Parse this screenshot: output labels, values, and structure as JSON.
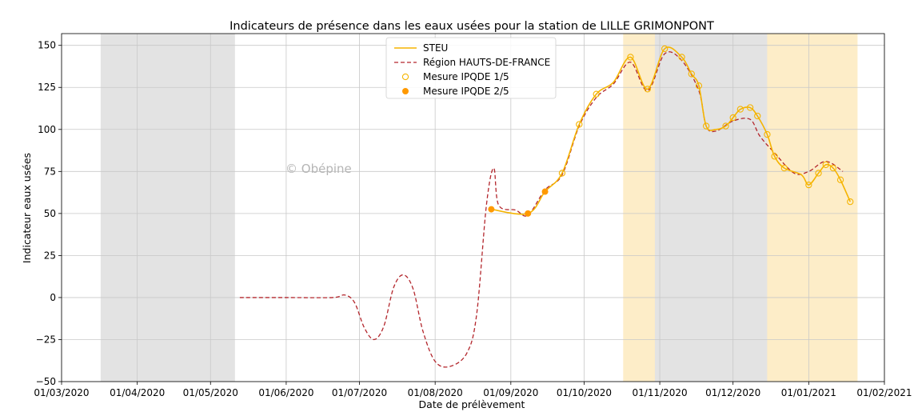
{
  "chart_data": {
    "type": "line",
    "title": "Indicateurs de présence dans les eaux usées pour la station de LILLE GRIMONPONT",
    "xlabel": "Date de prélèvement",
    "ylabel": "Indicateur eaux usées",
    "watermark": "© Obépine",
    "xlim": [
      "2020-03-01",
      "2021-02-01"
    ],
    "ylim": [
      -50,
      157
    ],
    "grid": true,
    "legend_position": "top-center",
    "x_ticks": [
      {
        "date": "2020-03-01",
        "label": "01/03/2020"
      },
      {
        "date": "2020-04-01",
        "label": "01/04/2020"
      },
      {
        "date": "2020-05-01",
        "label": "01/05/2020"
      },
      {
        "date": "2020-06-01",
        "label": "01/06/2020"
      },
      {
        "date": "2020-07-01",
        "label": "01/07/2020"
      },
      {
        "date": "2020-08-01",
        "label": "01/08/2020"
      },
      {
        "date": "2020-09-01",
        "label": "01/09/2020"
      },
      {
        "date": "2020-10-01",
        "label": "01/10/2020"
      },
      {
        "date": "2020-11-01",
        "label": "01/11/2020"
      },
      {
        "date": "2020-12-01",
        "label": "01/12/2020"
      },
      {
        "date": "2021-01-01",
        "label": "01/01/2021"
      },
      {
        "date": "2021-02-01",
        "label": "01/02/2021"
      }
    ],
    "y_ticks": [
      {
        "value": -50,
        "label": "−50"
      },
      {
        "value": -25,
        "label": "−25"
      },
      {
        "value": 0,
        "label": "0"
      },
      {
        "value": 25,
        "label": "25"
      },
      {
        "value": 50,
        "label": "50"
      },
      {
        "value": 75,
        "label": "75"
      },
      {
        "value": 100,
        "label": "100"
      },
      {
        "value": 125,
        "label": "125"
      },
      {
        "value": 150,
        "label": "150"
      }
    ],
    "shaded_periods": [
      {
        "start": "2020-03-17",
        "end": "2020-05-11",
        "color": "#e3e3e3"
      },
      {
        "start": "2020-10-17",
        "end": "2020-12-15",
        "color": "#fdedc8"
      },
      {
        "start": "2020-10-30",
        "end": "2020-12-15",
        "color": "#e3e3e3"
      },
      {
        "start": "2020-12-15",
        "end": "2021-01-21",
        "color": "#fdedc8"
      }
    ],
    "series": [
      {
        "name": "STEU",
        "style": "solid",
        "color": "#f5b400",
        "points": [
          [
            "2020-08-24",
            52.5
          ],
          [
            "2020-09-08",
            50
          ],
          [
            "2020-09-15",
            63
          ],
          [
            "2020-09-22",
            74
          ],
          [
            "2020-09-29",
            103
          ],
          [
            "2020-10-06",
            121
          ],
          [
            "2020-10-13",
            128
          ],
          [
            "2020-10-20",
            143
          ],
          [
            "2020-10-27",
            124
          ],
          [
            "2020-11-03",
            148
          ],
          [
            "2020-11-10",
            143
          ],
          [
            "2020-11-14",
            133
          ],
          [
            "2020-11-17",
            126
          ],
          [
            "2020-11-20",
            102
          ],
          [
            "2020-11-24",
            100
          ],
          [
            "2020-11-28",
            102
          ],
          [
            "2020-12-01",
            107
          ],
          [
            "2020-12-04",
            112
          ],
          [
            "2020-12-08",
            113
          ],
          [
            "2020-12-11",
            108
          ],
          [
            "2020-12-15",
            97
          ],
          [
            "2020-12-18",
            84
          ],
          [
            "2020-12-22",
            77
          ],
          [
            "2020-12-29",
            73
          ],
          [
            "2021-01-01",
            67
          ],
          [
            "2021-01-05",
            74
          ],
          [
            "2021-01-08",
            79
          ],
          [
            "2021-01-11",
            77
          ],
          [
            "2021-01-14",
            70
          ],
          [
            "2021-01-18",
            57
          ]
        ]
      },
      {
        "name": "Région HAUTS-DE-FRANCE",
        "style": "dashed",
        "color": "#b3262c",
        "points": [
          [
            "2020-05-13",
            0
          ],
          [
            "2020-06-01",
            0
          ],
          [
            "2020-06-20",
            0
          ],
          [
            "2020-06-25",
            1.5
          ],
          [
            "2020-06-29",
            -3
          ],
          [
            "2020-07-03",
            -18
          ],
          [
            "2020-07-07",
            -25
          ],
          [
            "2020-07-11",
            -17
          ],
          [
            "2020-07-15",
            6
          ],
          [
            "2020-07-19",
            13.5
          ],
          [
            "2020-07-23",
            5
          ],
          [
            "2020-07-27",
            -20
          ],
          [
            "2020-08-01",
            -38
          ],
          [
            "2020-08-07",
            -41
          ],
          [
            "2020-08-14",
            -33
          ],
          [
            "2020-08-18",
            -10
          ],
          [
            "2020-08-22",
            55
          ],
          [
            "2020-08-25",
            77
          ],
          [
            "2020-08-27",
            55
          ],
          [
            "2020-09-03",
            52
          ],
          [
            "2020-09-08",
            49
          ],
          [
            "2020-09-15",
            64
          ],
          [
            "2020-09-22",
            73
          ],
          [
            "2020-09-29",
            102
          ],
          [
            "2020-10-06",
            119
          ],
          [
            "2020-10-13",
            127
          ],
          [
            "2020-10-20",
            140
          ],
          [
            "2020-10-27",
            123
          ],
          [
            "2020-11-03",
            145
          ],
          [
            "2020-11-10",
            141
          ],
          [
            "2020-11-17",
            123
          ],
          [
            "2020-11-20",
            102
          ],
          [
            "2020-11-24",
            99
          ],
          [
            "2020-12-01",
            105
          ],
          [
            "2020-12-08",
            106
          ],
          [
            "2020-12-12",
            96
          ],
          [
            "2020-12-18",
            86
          ],
          [
            "2020-12-26",
            74
          ],
          [
            "2021-01-01",
            75
          ],
          [
            "2021-01-08",
            81
          ],
          [
            "2021-01-15",
            75
          ]
        ]
      },
      {
        "name": "Mesure IPQDE 1/5",
        "style": "marker-hollow",
        "color": "#f5b400",
        "points": [
          [
            "2020-09-22",
            74
          ],
          [
            "2020-09-29",
            103
          ],
          [
            "2020-10-06",
            121
          ],
          [
            "2020-10-20",
            143
          ],
          [
            "2020-10-27",
            124
          ],
          [
            "2020-11-03",
            148
          ],
          [
            "2020-11-10",
            143
          ],
          [
            "2020-11-14",
            133
          ],
          [
            "2020-11-17",
            126
          ],
          [
            "2020-11-20",
            102
          ],
          [
            "2020-11-28",
            102
          ],
          [
            "2020-12-01",
            107
          ],
          [
            "2020-12-04",
            112
          ],
          [
            "2020-12-08",
            113
          ],
          [
            "2020-12-11",
            108
          ],
          [
            "2020-12-15",
            97
          ],
          [
            "2020-12-18",
            84
          ],
          [
            "2020-12-22",
            77
          ],
          [
            "2021-01-01",
            67
          ],
          [
            "2021-01-05",
            74
          ],
          [
            "2021-01-08",
            79
          ],
          [
            "2021-01-11",
            77
          ],
          [
            "2021-01-14",
            70
          ],
          [
            "2021-01-18",
            57
          ]
        ]
      },
      {
        "name": "Mesure IPQDE 2/5",
        "style": "marker-filled",
        "color": "#ff9900",
        "points": [
          [
            "2020-08-24",
            52.5
          ],
          [
            "2020-09-08",
            50
          ],
          [
            "2020-09-15",
            63
          ]
        ]
      }
    ]
  }
}
